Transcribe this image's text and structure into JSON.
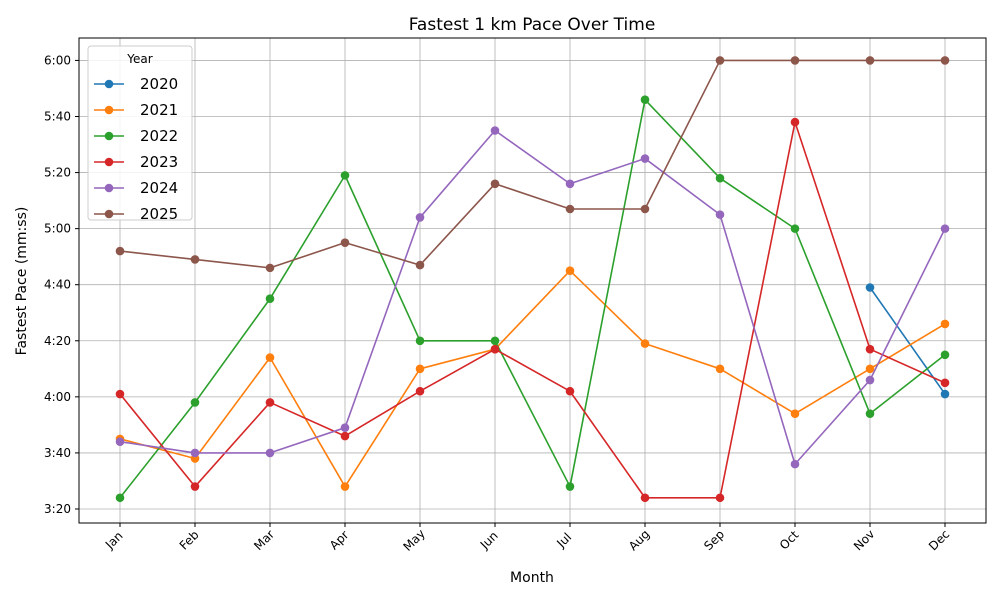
{
  "chart_data": {
    "type": "line",
    "title": "Fastest 1 km Pace Over Time",
    "xlabel": "Month",
    "ylabel": "Fastest Pace (mm:ss)",
    "categories": [
      "Jan",
      "Feb",
      "Mar",
      "Apr",
      "May",
      "Jun",
      "Jul",
      "Aug",
      "Sep",
      "Oct",
      "Nov",
      "Dec"
    ],
    "y_unit": "seconds per km",
    "ylim": [
      195,
      368
    ],
    "yticks": [
      200,
      220,
      240,
      260,
      280,
      300,
      320,
      340,
      360
    ],
    "ytick_labels": [
      "3:20",
      "3:40",
      "4:00",
      "4:20",
      "4:40",
      "5:00",
      "5:20",
      "5:40",
      "6:00"
    ],
    "grid": true,
    "marker": "circle",
    "legend": {
      "title": "Year",
      "placement": "top-left"
    },
    "series": [
      {
        "name": "2020",
        "color": "#1f77b4",
        "values": [
          null,
          null,
          null,
          null,
          null,
          null,
          null,
          null,
          null,
          null,
          279,
          241
        ]
      },
      {
        "name": "2021",
        "color": "#ff7f0e",
        "values": [
          225,
          218,
          254,
          208,
          250,
          257,
          285,
          259,
          250,
          234,
          250,
          266
        ]
      },
      {
        "name": "2022",
        "color": "#2ca02c",
        "values": [
          204,
          238,
          275,
          319,
          260,
          260,
          208,
          346,
          318,
          300,
          234,
          255
        ]
      },
      {
        "name": "2023",
        "color": "#d62728",
        "values": [
          241,
          208,
          238,
          226,
          242,
          257,
          242,
          204,
          204,
          338,
          257,
          245
        ]
      },
      {
        "name": "2024",
        "color": "#9467bd",
        "values": [
          224,
          220,
          220,
          229,
          304,
          335,
          316,
          325,
          305,
          216,
          246,
          300
        ]
      },
      {
        "name": "2025",
        "color": "#8c564b",
        "values": [
          292,
          289,
          286,
          295,
          287,
          316,
          307,
          307,
          360,
          360,
          360,
          360
        ]
      }
    ]
  }
}
